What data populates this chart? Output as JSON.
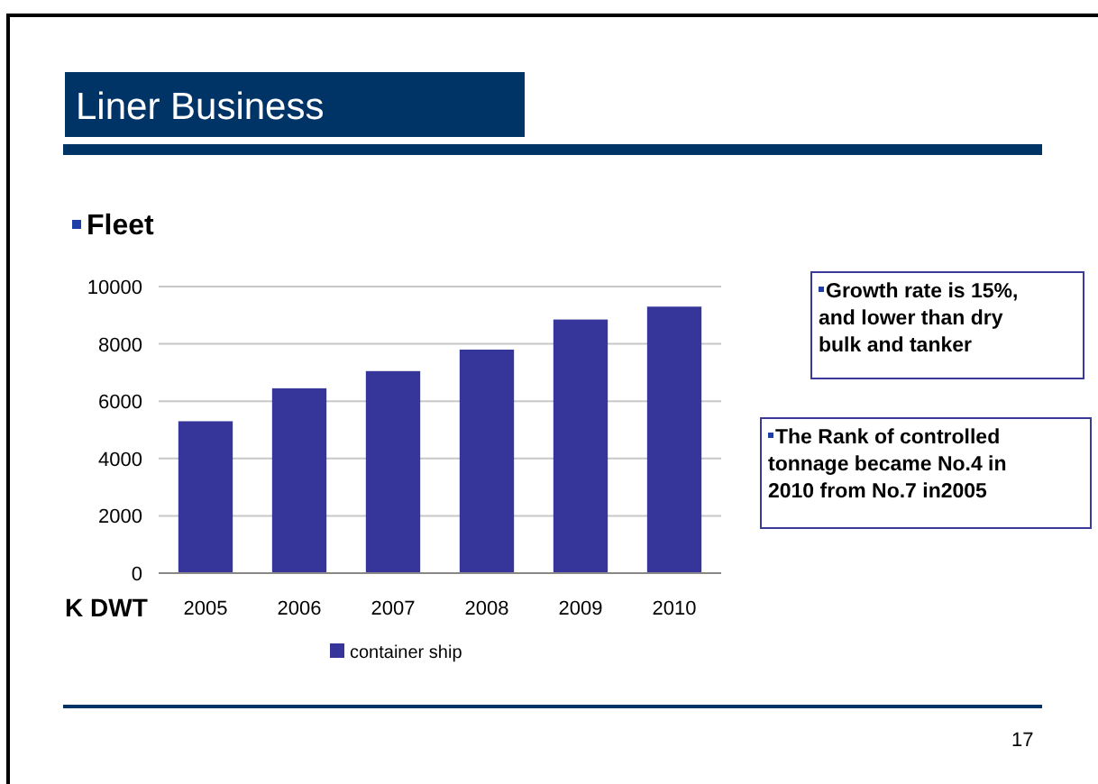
{
  "chart_data": {
    "type": "bar",
    "title": "Liner Business",
    "subtitle": "Fleet",
    "ylabel": "K DWT",
    "categories": [
      "2005",
      "2006",
      "2007",
      "2008",
      "2009",
      "2010"
    ],
    "series": [
      {
        "name": "container ship",
        "color": "#35359a",
        "values": [
          5300,
          6450,
          7050,
          7800,
          8850,
          9300
        ]
      }
    ],
    "ylim": [
      0,
      10000
    ],
    "yticks": [
      0,
      2000,
      4000,
      6000,
      8000,
      10000
    ],
    "grid": "y",
    "legend": "bottom",
    "annotations": [
      "Growth rate is 15%, and lower than dry bulk and tanker",
      "The Rank of controlled tonnage became No.4 in 2010 from No.7 in2005",
      "17"
    ]
  }
}
